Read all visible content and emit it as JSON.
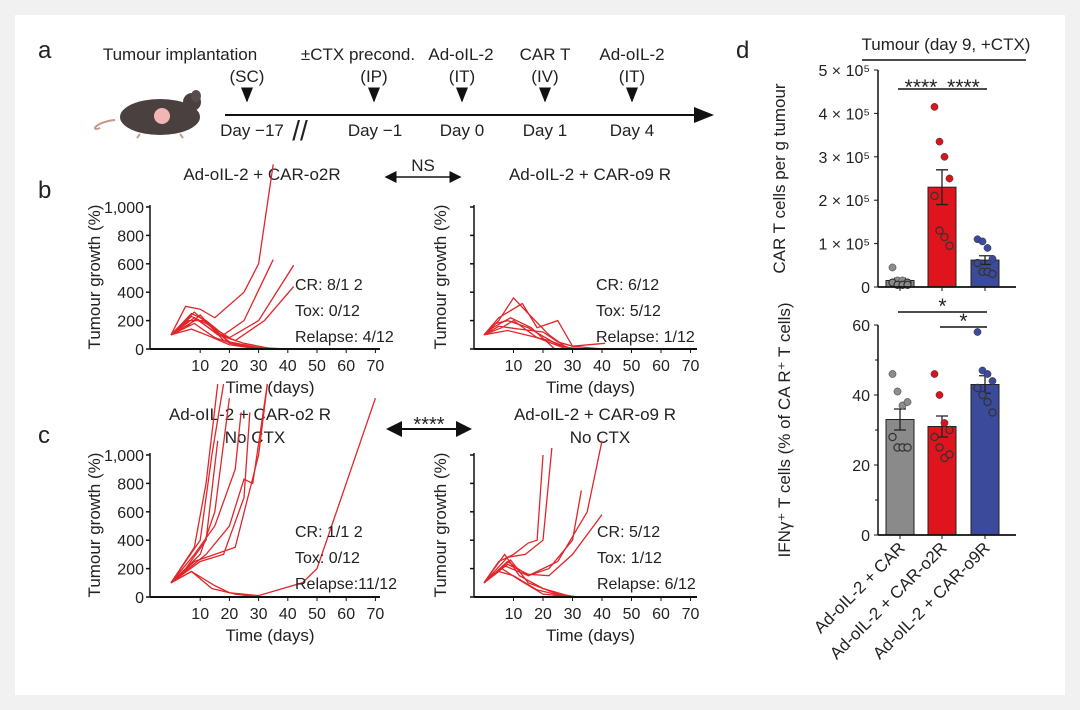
{
  "panel_labels": {
    "a": "a",
    "b": "b",
    "c": "c",
    "d": "d"
  },
  "timeline": {
    "events": [
      {
        "label": "Tumour implantation",
        "route": "(SC)",
        "day": "Day −17"
      },
      {
        "label": "±CTX precond.",
        "route": "(IP)",
        "day": "Day −1"
      },
      {
        "label": "Ad-oIL-2",
        "route": "(IT)",
        "day": "Day 0"
      },
      {
        "label": "CAR  T",
        "route": "(IV)",
        "day": "Day 1"
      },
      {
        "label": "Ad-oIL-2",
        "route": "(IT)",
        "day": "Day 4"
      }
    ],
    "break_mark": "//"
  },
  "comparisons": {
    "b": "NS",
    "c": "****"
  },
  "colors": {
    "curve": "#e0262a",
    "gray": "#8a8a8a",
    "red": "#e0141c",
    "blue": "#3b4a9a"
  },
  "chart_data": [
    {
      "type": "line",
      "panel": "b",
      "title": "Ad-oIL-2 + CAR-o2R",
      "xlabel": "Time (days)",
      "ylabel": "Tumour growth (%)",
      "xticks": [
        10,
        20,
        30,
        40,
        50,
        60,
        70
      ],
      "yticks": [
        "0",
        "200",
        "400",
        "600",
        "800",
        "1,000"
      ],
      "ylim": [
        0,
        1000
      ],
      "xlim": [
        -7,
        70
      ],
      "annotations": [
        "CR: 8/1 2",
        "Tox: 0/12",
        "Relapse: 4/12"
      ],
      "series": [
        [
          [
            0,
            100
          ],
          [
            5,
            300
          ],
          [
            10,
            280
          ],
          [
            15,
            220
          ],
          [
            25,
            400
          ],
          [
            30,
            600
          ],
          [
            35,
            1300
          ]
        ],
        [
          [
            0,
            100
          ],
          [
            7,
            250
          ],
          [
            12,
            200
          ],
          [
            18,
            100
          ],
          [
            25,
            200
          ],
          [
            35,
            630
          ]
        ],
        [
          [
            0,
            100
          ],
          [
            7,
            230
          ],
          [
            12,
            180
          ],
          [
            20,
            80
          ],
          [
            30,
            200
          ],
          [
            42,
            590
          ]
        ],
        [
          [
            0,
            100
          ],
          [
            8,
            220
          ],
          [
            15,
            120
          ],
          [
            22,
            60
          ],
          [
            32,
            200
          ],
          [
            42,
            440
          ]
        ],
        [
          [
            0,
            100
          ],
          [
            8,
            260
          ],
          [
            14,
            150
          ],
          [
            20,
            50
          ],
          [
            30,
            10
          ],
          [
            40,
            0
          ],
          [
            70,
            0
          ]
        ],
        [
          [
            0,
            100
          ],
          [
            6,
            200
          ],
          [
            12,
            200
          ],
          [
            20,
            40
          ],
          [
            28,
            10
          ],
          [
            35,
            0
          ]
        ],
        [
          [
            0,
            100
          ],
          [
            8,
            180
          ],
          [
            15,
            80
          ],
          [
            22,
            30
          ],
          [
            30,
            0
          ]
        ],
        [
          [
            0,
            100
          ],
          [
            5,
            150
          ],
          [
            10,
            240
          ],
          [
            18,
            60
          ],
          [
            25,
            20
          ],
          [
            35,
            0
          ]
        ],
        [
          [
            0,
            100
          ],
          [
            7,
            140
          ],
          [
            12,
            100
          ],
          [
            20,
            30
          ],
          [
            30,
            0
          ]
        ],
        [
          [
            0,
            100
          ],
          [
            9,
            210
          ],
          [
            16,
            100
          ],
          [
            25,
            40
          ],
          [
            35,
            0
          ]
        ]
      ]
    },
    {
      "type": "line",
      "panel": "b",
      "title": "Ad-oIL-2 + CAR-o9  R",
      "xlabel": "Time (days)",
      "ylabel": "Tumour growth (%)",
      "xticks": [
        10,
        20,
        30,
        40,
        50,
        60,
        70
      ],
      "yticks": [],
      "ylim": [
        0,
        1000
      ],
      "xlim": [
        -3,
        70
      ],
      "annotations": [
        "CR: 6/12",
        "Tox: 5/12",
        "Relapse: 1/12"
      ],
      "series": [
        [
          [
            0,
            100
          ],
          [
            5,
            200
          ],
          [
            10,
            360
          ],
          [
            15,
            250
          ],
          [
            22,
            100
          ],
          [
            28,
            10
          ],
          [
            35,
            0
          ],
          [
            70,
            0
          ]
        ],
        [
          [
            0,
            100
          ],
          [
            5,
            220
          ],
          [
            13,
            320
          ],
          [
            18,
            150
          ],
          [
            25,
            200
          ],
          [
            30,
            20
          ],
          [
            40,
            0
          ]
        ],
        [
          [
            0,
            100
          ],
          [
            4,
            180
          ],
          [
            8,
            200
          ],
          [
            15,
            150
          ],
          [
            25,
            30
          ],
          [
            30,
            0
          ]
        ],
        [
          [
            0,
            100
          ],
          [
            6,
            150
          ],
          [
            10,
            200
          ],
          [
            18,
            80
          ],
          [
            28,
            0
          ]
        ],
        [
          [
            0,
            100
          ],
          [
            5,
            160
          ],
          [
            12,
            140
          ],
          [
            20,
            120
          ],
          [
            25,
            50
          ],
          [
            30,
            20
          ],
          [
            41,
            40
          ]
        ],
        [
          [
            0,
            100
          ],
          [
            8,
            130
          ],
          [
            14,
            100
          ],
          [
            22,
            60
          ],
          [
            30,
            0
          ]
        ],
        [
          [
            0,
            100
          ],
          [
            3,
            150
          ],
          [
            9,
            220
          ],
          [
            16,
            150
          ],
          [
            24,
            0
          ]
        ]
      ]
    },
    {
      "type": "line",
      "panel": "c",
      "title": "Ad-oIL-2 + CAR-o2  R",
      "subtitle": "No CTX",
      "xlabel": "Time (days)",
      "ylabel": "Tumour growth (%)",
      "xticks": [
        10,
        20,
        30,
        40,
        50,
        60,
        70
      ],
      "yticks": [
        "0",
        "200",
        "400",
        "600",
        "800",
        "1,000"
      ],
      "ylim": [
        0,
        1000
      ],
      "xlim": [
        -7,
        70
      ],
      "annotations": [
        "CR: 1/1 2",
        "Tox: 0/12",
        "Relapse:11/12"
      ],
      "series": [
        [
          [
            0,
            100
          ],
          [
            8,
            350
          ],
          [
            12,
            800
          ],
          [
            16,
            1500
          ]
        ],
        [
          [
            0,
            100
          ],
          [
            10,
            400
          ],
          [
            14,
            1000
          ],
          [
            18,
            1500
          ]
        ],
        [
          [
            0,
            100
          ],
          [
            10,
            300
          ],
          [
            15,
            600
          ],
          [
            20,
            1400
          ]
        ],
        [
          [
            0,
            100
          ],
          [
            8,
            300
          ],
          [
            15,
            500
          ],
          [
            22,
            900
          ],
          [
            24,
            1300
          ]
        ],
        [
          [
            0,
            100
          ],
          [
            12,
            300
          ],
          [
            20,
            500
          ],
          [
            25,
            830
          ],
          [
            28,
            800
          ],
          [
            33,
            1500
          ]
        ],
        [
          [
            0,
            100
          ],
          [
            10,
            250
          ],
          [
            18,
            300
          ],
          [
            25,
            700
          ],
          [
            27,
            1300
          ]
        ],
        [
          [
            0,
            100
          ],
          [
            8,
            250
          ],
          [
            15,
            300
          ],
          [
            22,
            350
          ],
          [
            30,
            1000
          ],
          [
            33,
            1500
          ]
        ],
        [
          [
            0,
            100
          ],
          [
            7,
            180
          ],
          [
            15,
            80
          ],
          [
            20,
            30
          ],
          [
            30,
            10
          ],
          [
            45,
            100
          ],
          [
            50,
            200
          ],
          [
            70,
            1400
          ]
        ],
        [
          [
            0,
            100
          ],
          [
            7,
            180
          ],
          [
            14,
            60
          ],
          [
            22,
            20
          ],
          [
            30,
            0
          ],
          [
            70,
            0
          ]
        ],
        [
          [
            0,
            100
          ],
          [
            5,
            200
          ],
          [
            12,
            400
          ],
          [
            16,
            1100
          ]
        ]
      ]
    },
    {
      "type": "line",
      "panel": "c",
      "title": "Ad-oIL-2 + CAR-o9  R",
      "subtitle": "No CTX",
      "xlabel": "Time (days)",
      "ylabel": "Tumour growth (%)",
      "xticks": [
        10,
        20,
        30,
        40,
        50,
        60,
        70
      ],
      "yticks": [],
      "ylim": [
        0,
        1000
      ],
      "xlim": [
        -3,
        70
      ],
      "annotations": [
        "CR: 5/12",
        "Tox: 1/12",
        "Relapse: 6/12"
      ],
      "series": [
        [
          [
            0,
            100
          ],
          [
            5,
            250
          ],
          [
            10,
            300
          ],
          [
            15,
            380
          ],
          [
            18,
            400
          ],
          [
            20,
            1000
          ]
        ],
        [
          [
            0,
            100
          ],
          [
            8,
            280
          ],
          [
            14,
            300
          ],
          [
            20,
            400
          ],
          [
            23,
            1050
          ]
        ],
        [
          [
            0,
            100
          ],
          [
            8,
            250
          ],
          [
            15,
            150
          ],
          [
            25,
            250
          ],
          [
            35,
            600
          ],
          [
            40,
            1100
          ]
        ],
        [
          [
            0,
            100
          ],
          [
            7,
            220
          ],
          [
            15,
            150
          ],
          [
            22,
            200
          ],
          [
            30,
            400
          ],
          [
            33,
            750
          ]
        ],
        [
          [
            0,
            100
          ],
          [
            8,
            230
          ],
          [
            15,
            160
          ],
          [
            22,
            150
          ],
          [
            30,
            300
          ],
          [
            40,
            580
          ]
        ],
        [
          [
            0,
            100
          ],
          [
            6,
            200
          ],
          [
            12,
            120
          ],
          [
            20,
            20
          ],
          [
            30,
            0
          ],
          [
            70,
            0
          ]
        ],
        [
          [
            0,
            100
          ],
          [
            9,
            260
          ],
          [
            15,
            100
          ],
          [
            25,
            20
          ],
          [
            32,
            0
          ]
        ],
        [
          [
            0,
            100
          ],
          [
            5,
            180
          ],
          [
            10,
            150
          ],
          [
            18,
            50
          ],
          [
            28,
            0
          ]
        ],
        [
          [
            0,
            100
          ],
          [
            7,
            300
          ],
          [
            12,
            150
          ],
          [
            20,
            60
          ],
          [
            30,
            0
          ]
        ]
      ]
    },
    {
      "type": "bar",
      "panel": "d",
      "title": "Tumour (day 9, +CTX)",
      "ylabel": "CAR  T cells per g tumour",
      "yticks": [
        "0",
        "1 × 10⁵",
        "2 × 10⁵",
        "3 × 10⁵",
        "4 × 10⁵",
        "5 × 10⁵"
      ],
      "ylim": [
        0,
        500000
      ],
      "categories": [
        "Ad-oIL-2 + CAR",
        "Ad-oIL-2 + CAR-o2R",
        "Ad-oIL-2 + CAR-o9R"
      ],
      "values": [
        15000,
        230000,
        62000
      ],
      "sem": [
        5000,
        40000,
        10000
      ],
      "points": [
        [
          45000,
          15000,
          15000,
          10000,
          10000,
          5000,
          5000,
          5000
        ],
        [
          415000,
          335000,
          300000,
          250000,
          210000,
          130000,
          115000,
          95000
        ],
        [
          110000,
          105000,
          90000,
          65000,
          55000,
          35000,
          35000,
          30000
        ]
      ],
      "significance": [
        {
          "pair": [
            0,
            1
          ],
          "label": "****"
        },
        {
          "pair": [
            1,
            2
          ],
          "label": "****"
        }
      ]
    },
    {
      "type": "bar",
      "panel": "d",
      "ylabel": "IFNγ⁺ T cells (% of CA R⁺ T cells)",
      "yticks": [
        "0",
        "20",
        "40",
        "60"
      ],
      "ylim": [
        0,
        60
      ],
      "categories": [
        "Ad-oIL-2 + CAR",
        "Ad-oIL-2 + CAR-o2R",
        "Ad-oIL-2 + CAR-o9R"
      ],
      "values": [
        33,
        31,
        43
      ],
      "sem": [
        3,
        3,
        2.5
      ],
      "points": [
        [
          46,
          41,
          37,
          38,
          28,
          25,
          25,
          25
        ],
        [
          46,
          40,
          32,
          30,
          28,
          25,
          22,
          23
        ],
        [
          58,
          47,
          46,
          44,
          42,
          40,
          38,
          35
        ]
      ],
      "significance": [
        {
          "pair": [
            0,
            2
          ],
          "label": "*"
        },
        {
          "pair": [
            1,
            2
          ],
          "label": "*"
        }
      ]
    }
  ]
}
